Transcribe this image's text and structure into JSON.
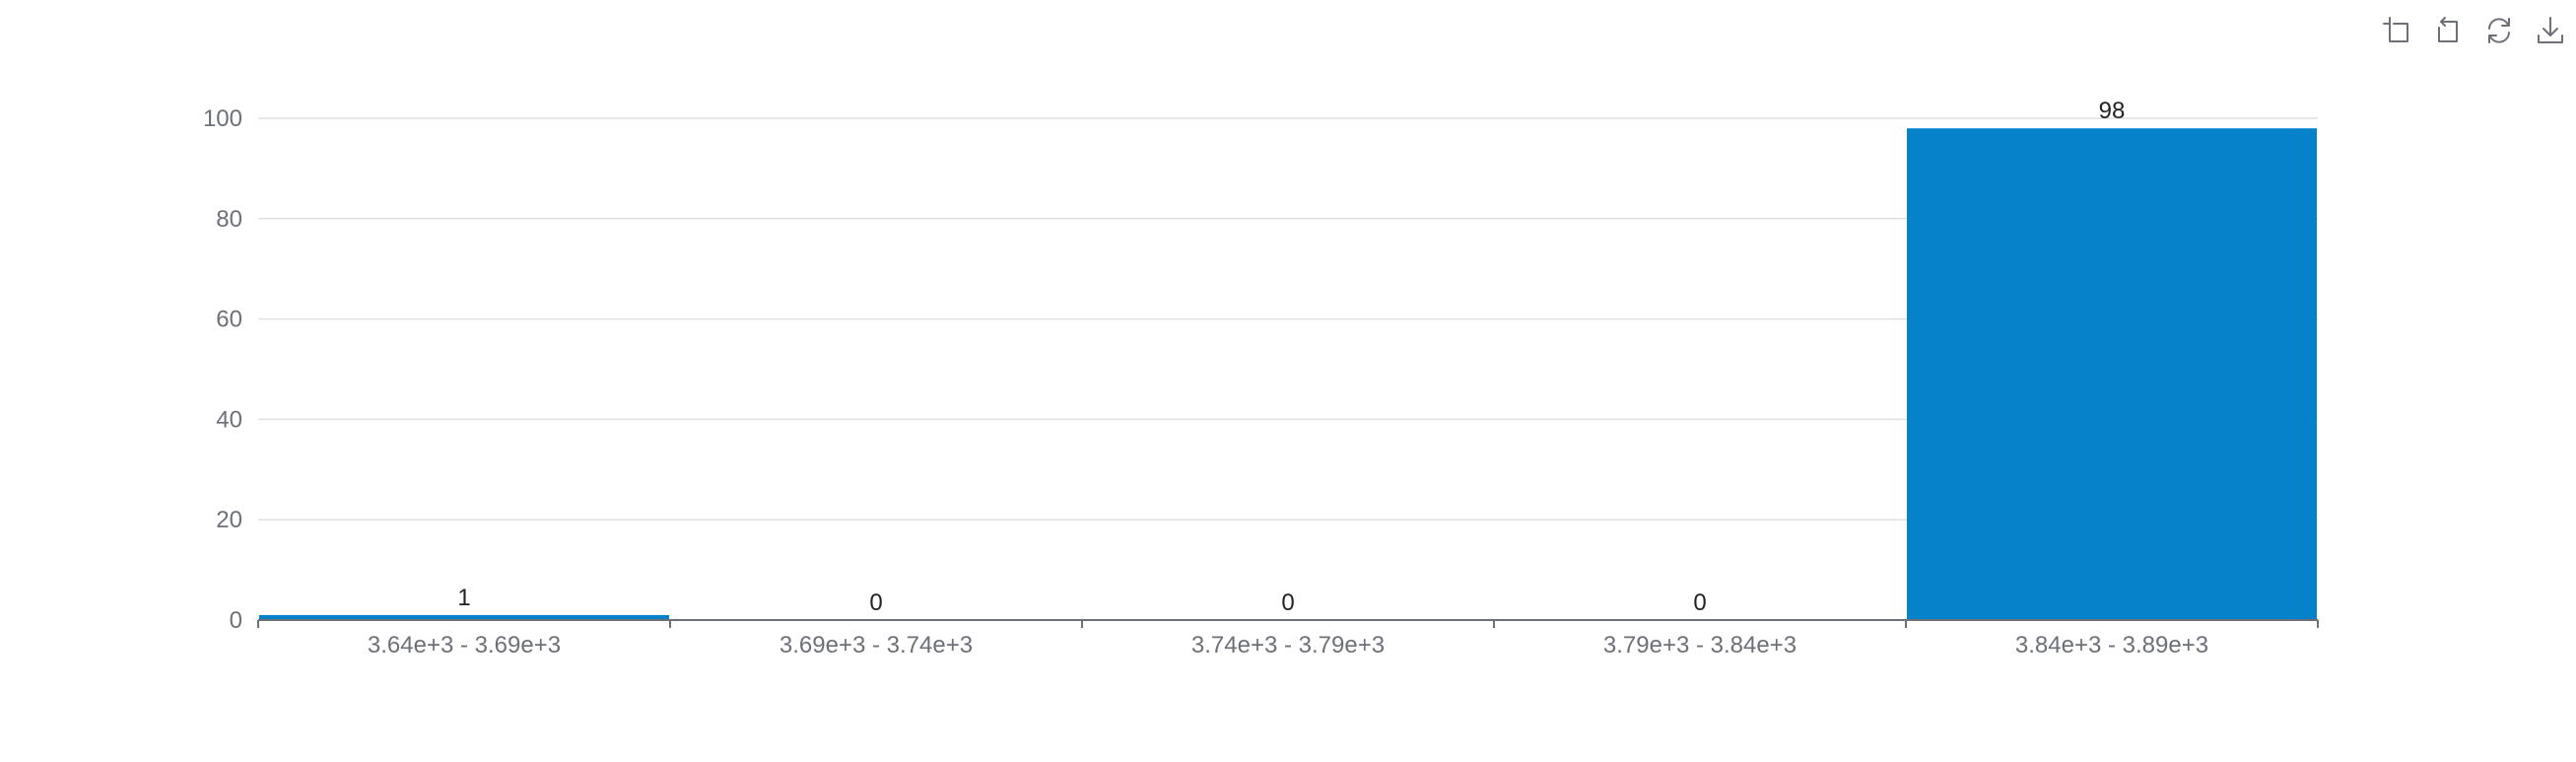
{
  "toolbar": {
    "icons": [
      "zoom-icon",
      "zoom-reset-icon",
      "restore-icon",
      "download-icon"
    ]
  },
  "colors": {
    "bar": "#0582ca",
    "grid": "#e0e0e0",
    "axis": "#6e7079",
    "tick_label": "#6e7079",
    "data_label": "#222222"
  },
  "chart_data": {
    "type": "bar",
    "categories": [
      "3.64e+3 - 3.69e+3",
      "3.69e+3 - 3.74e+3",
      "3.74e+3 - 3.79e+3",
      "3.79e+3 - 3.84e+3",
      "3.84e+3 - 3.89e+3"
    ],
    "values": [
      1,
      0,
      0,
      0,
      98
    ],
    "ylim": [
      0,
      100
    ],
    "yticks": [
      0,
      20,
      40,
      60,
      80,
      100
    ],
    "grid": true,
    "title": "",
    "xlabel": "",
    "ylabel": ""
  }
}
